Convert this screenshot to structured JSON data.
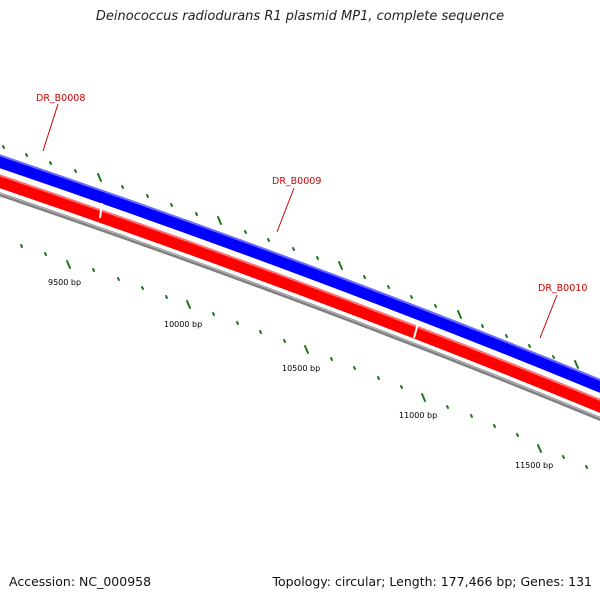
{
  "title": "Deinococcus radiodurans R1 plasmid MP1, complete sequence",
  "accession": "Accession: NC_000958",
  "summary": "Topology: circular; Length: 177,466 bp; Genes: 131",
  "genes": [
    {
      "name": "DR_B0008",
      "color": "#cc0000"
    },
    {
      "name": "DR_B0009",
      "color": "#cc0000"
    },
    {
      "name": "DR_B0010",
      "color": "#cc0000"
    }
  ],
  "tick_labels": [
    "9500 bp",
    "10000 bp",
    "10500 bp",
    "11000 bp",
    "11500 bp"
  ],
  "colors": {
    "forward_strand": "#0000ff",
    "reverse_strand": "#ff0000",
    "backbone": "#808080",
    "ticks": "#1a7a1a",
    "gene_labels": "#cc0000"
  }
}
